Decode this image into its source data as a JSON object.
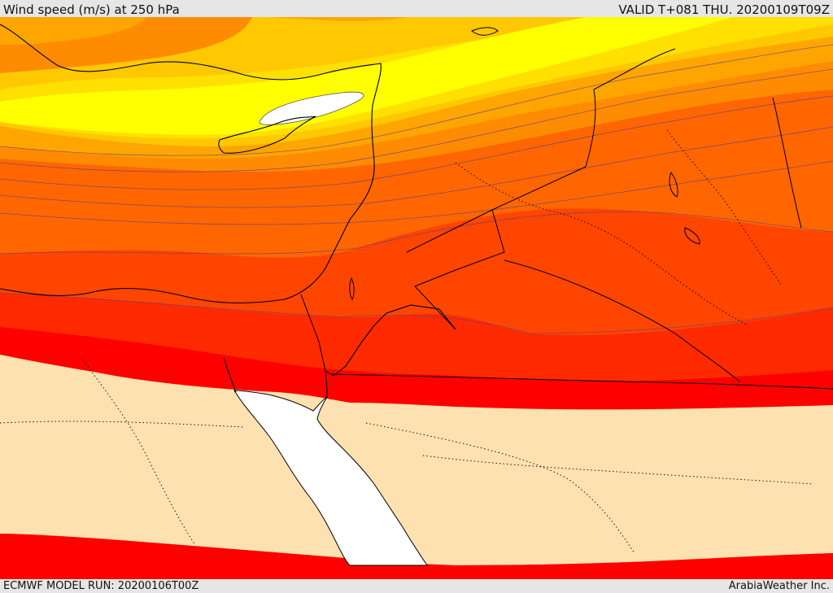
{
  "header": {
    "title": "Wind speed (m/s) at 250 hPa",
    "valid": "VALID T+081 THU. 20200109T09Z"
  },
  "footer": {
    "model_run": "ECMWF MODEL RUN: 20200106T00Z",
    "credit": "ArabiaWeather Inc."
  },
  "colors": {
    "calm": "#fde1b0",
    "band_1": "#ff0000",
    "band_2": "#ff2a00",
    "band_3": "#ff4500",
    "band_4": "#ff6600",
    "band_5": "#ff8c00",
    "band_6": "#ffa500",
    "band_7": "#ffc800",
    "band_8": "#ffe000",
    "band_9": "#ffff00",
    "jet_core": "#ffffff",
    "sea": "#ffffff",
    "coast": "#000000",
    "contour": "#5a3c8c"
  }
}
